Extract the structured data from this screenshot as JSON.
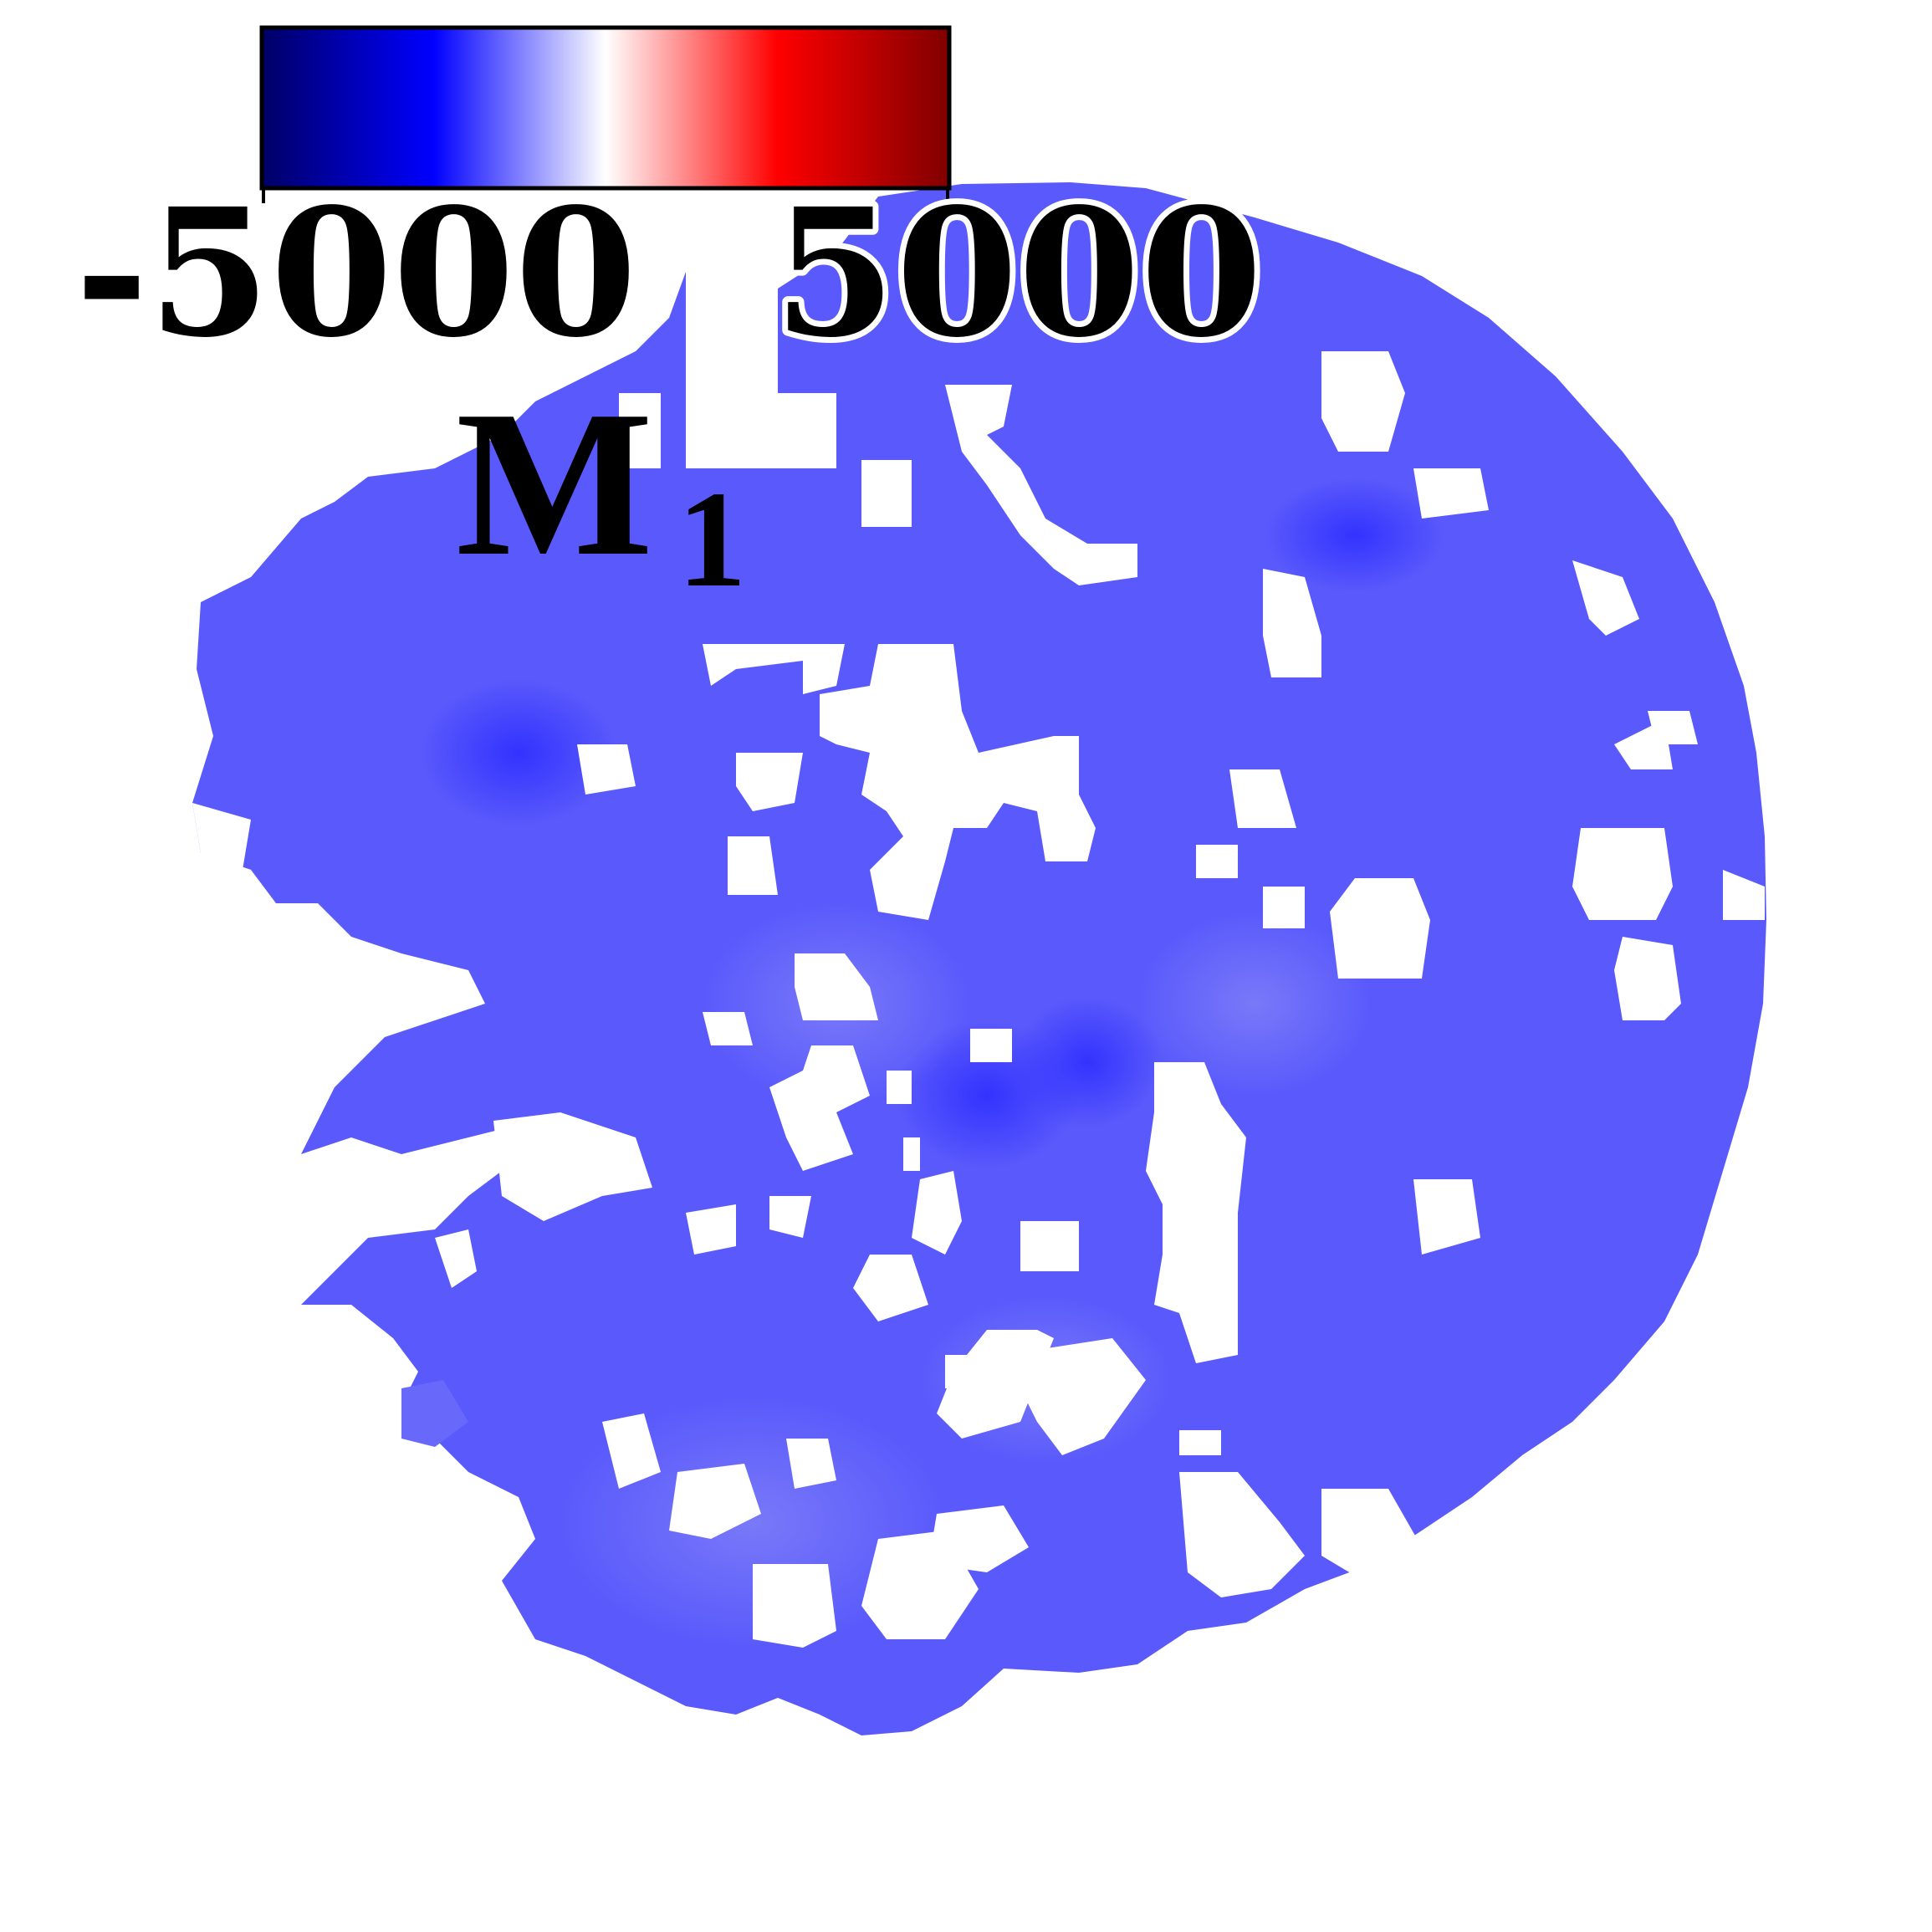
{
  "colorbar": {
    "min_label": "-5000",
    "max_label": "5000",
    "stops": [
      "#000066",
      "#0000ff",
      "#ffffff",
      "#ff0000",
      "#800000"
    ]
  },
  "panel_label": {
    "main": "M",
    "subscript": "1"
  },
  "map": {
    "fill_color": "#5a5afc",
    "dark_color": "#3c3cff",
    "light_color": "#7373fa",
    "mask_color": "#ffffff"
  }
}
